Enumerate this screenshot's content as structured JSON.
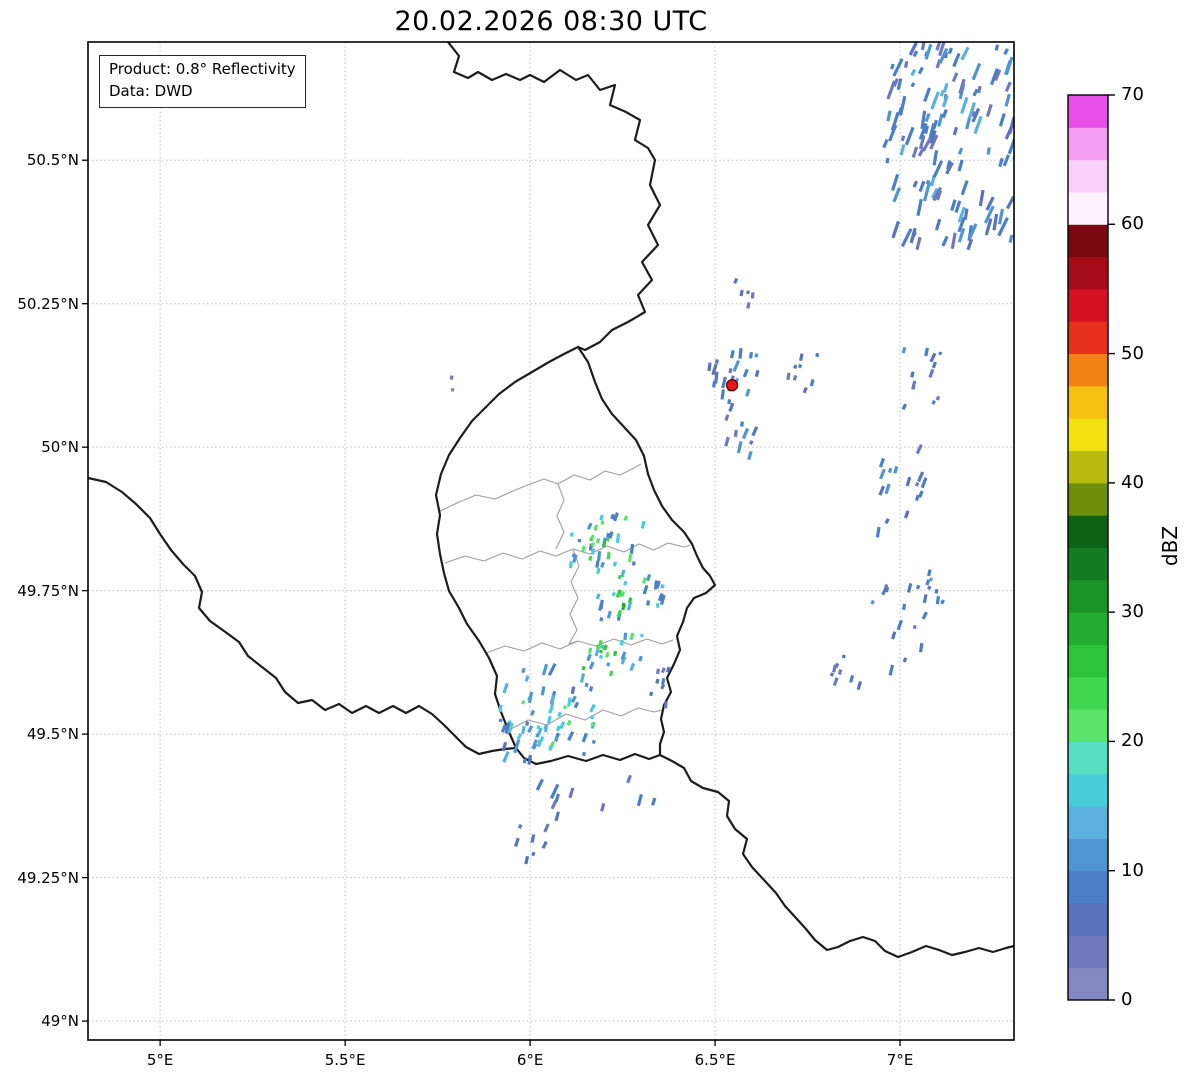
{
  "title": "20.02.2026 08:30 UTC",
  "info_box": {
    "line1": "Product: 0.8° Reflectivity",
    "line2": "Data: DWD"
  },
  "axes": {
    "lon_min": 4.805,
    "lon_max": 7.308,
    "lat_min": 48.967,
    "lat_max": 50.706,
    "x_ticks": [
      {
        "value": 5.0,
        "label": "5°E"
      },
      {
        "value": 5.5,
        "label": "5.5°E"
      },
      {
        "value": 6.0,
        "label": "6°E"
      },
      {
        "value": 6.5,
        "label": "6.5°E"
      },
      {
        "value": 7.0,
        "label": "7°E"
      }
    ],
    "y_ticks": [
      {
        "value": 50.5,
        "label": "50.5°N"
      },
      {
        "value": 50.25,
        "label": "50.25°N"
      },
      {
        "value": 50.0,
        "label": "50°N"
      },
      {
        "value": 49.75,
        "label": "49.75°N"
      },
      {
        "value": 49.5,
        "label": "49.5°N"
      },
      {
        "value": 49.25,
        "label": "49.25°N"
      },
      {
        "value": 49.0,
        "label": "49°N"
      }
    ]
  },
  "map": {
    "border_color": "#1c1c1c",
    "admin_color": "#9e9e9e",
    "grid_color": "#bdbdbd",
    "background": "#ffffff"
  },
  "marker": {
    "description": "radar site",
    "lon": 6.546,
    "lat": 50.108,
    "color": "#e31a1c",
    "edge_color": "#6b0000",
    "radius": 5.5
  },
  "colorbar": {
    "label": "dBZ",
    "min": 0,
    "max": 70,
    "tick_values": [
      0,
      10,
      20,
      30,
      40,
      50,
      60,
      70
    ],
    "segment_step": 2.5,
    "colors": [
      "#8487c1",
      "#6f78bc",
      "#5973bd",
      "#4a7ec6",
      "#4e95d1",
      "#5bb1de",
      "#49ccd9",
      "#55dfc0",
      "#5ae468",
      "#3fd74f",
      "#2cc43c",
      "#23ad31",
      "#1b9427",
      "#137c1e",
      "#0c6315",
      "#6f8e0b",
      "#b8bb0d",
      "#f0e10f",
      "#f5c113",
      "#f08312",
      "#e92f1e",
      "#d31120",
      "#a60c18",
      "#780911",
      "#fdf2fd",
      "#f9d0f9",
      "#f29df2",
      "#e84fe8"
    ]
  },
  "echo_clusters": [
    {
      "name": "echo-germany-northeast",
      "lon": 7.14,
      "lat": 50.53,
      "dlon": 0.36,
      "dlat": 0.36,
      "n": 130,
      "len": [
        4,
        20
      ],
      "angle": 18,
      "palette": [
        [
          "#6f78bc",
          2
        ],
        [
          "#5973bd",
          3
        ],
        [
          "#4a7ec6",
          4
        ],
        [
          "#4e95d1",
          2
        ],
        [
          "#5bb1de",
          1
        ]
      ]
    },
    {
      "name": "echo-speck-north",
      "lon": 6.58,
      "lat": 50.26,
      "dlon": 0.05,
      "dlat": 0.07,
      "n": 5,
      "len": [
        3,
        7
      ],
      "angle": 15,
      "palette": [
        [
          "#6f78bc",
          3
        ],
        [
          "#5973bd",
          4
        ],
        [
          "#4a7ec6",
          3
        ]
      ]
    },
    {
      "name": "echo-near-radar-site",
      "lon": 6.55,
      "lat": 50.07,
      "dlon": 0.14,
      "dlat": 0.2,
      "n": 30,
      "len": [
        3,
        12
      ],
      "angle": 15,
      "palette": [
        [
          "#6f78bc",
          2
        ],
        [
          "#5973bd",
          3
        ],
        [
          "#4a7ec6",
          4
        ],
        [
          "#4e95d1",
          2
        ]
      ]
    },
    {
      "name": "echo-east-of-radar",
      "lon": 6.74,
      "lat": 50.13,
      "dlon": 0.09,
      "dlat": 0.07,
      "n": 8,
      "len": [
        3,
        8
      ],
      "angle": 15,
      "palette": [
        [
          "#6f78bc",
          3
        ],
        [
          "#5973bd",
          4
        ],
        [
          "#4a7ec6",
          3
        ]
      ]
    },
    {
      "name": "echo-far-east-north",
      "lon": 7.07,
      "lat": 50.12,
      "dlon": 0.12,
      "dlat": 0.1,
      "n": 12,
      "len": [
        3,
        10
      ],
      "angle": 18,
      "palette": [
        [
          "#6f78bc",
          2
        ],
        [
          "#5973bd",
          3
        ],
        [
          "#4a7ec6",
          4
        ],
        [
          "#4e95d1",
          2
        ]
      ]
    },
    {
      "name": "echo-far-east-mid",
      "lon": 7.0,
      "lat": 49.92,
      "dlon": 0.14,
      "dlat": 0.16,
      "n": 16,
      "len": [
        3,
        11
      ],
      "angle": 18,
      "palette": [
        [
          "#6f78bc",
          2
        ],
        [
          "#5973bd",
          3
        ],
        [
          "#4a7ec6",
          4
        ],
        [
          "#4e95d1",
          2
        ]
      ]
    },
    {
      "name": "echo-far-east-south",
      "lon": 7.02,
      "lat": 49.7,
      "dlon": 0.2,
      "dlat": 0.18,
      "n": 22,
      "len": [
        3,
        11
      ],
      "angle": 18,
      "palette": [
        [
          "#6f78bc",
          2
        ],
        [
          "#5973bd",
          3
        ],
        [
          "#4a7ec6",
          4
        ],
        [
          "#4e95d1",
          2
        ]
      ]
    },
    {
      "name": "echo-southeast-speck",
      "lon": 6.85,
      "lat": 49.61,
      "dlon": 0.09,
      "dlat": 0.07,
      "n": 8,
      "len": [
        3,
        9
      ],
      "angle": 18,
      "palette": [
        [
          "#6f78bc",
          3
        ],
        [
          "#5973bd",
          4
        ],
        [
          "#4a7ec6",
          3
        ]
      ]
    },
    {
      "name": "echo-lux-north",
      "lon": 6.21,
      "lat": 49.845,
      "dlon": 0.2,
      "dlat": 0.1,
      "n": 28,
      "len": [
        3,
        10
      ],
      "angle": 15,
      "palette": [
        [
          "#4a7ec6",
          3
        ],
        [
          "#4e95d1",
          2
        ],
        [
          "#5bb1de",
          2
        ],
        [
          "#49ccd9",
          2
        ],
        [
          "#5ae468",
          1
        ],
        [
          "#3fd74f",
          1
        ]
      ]
    },
    {
      "name": "echo-lux-north-core",
      "lon": 6.19,
      "lat": 49.85,
      "dlon": 0.05,
      "dlat": 0.04,
      "n": 8,
      "len": [
        3,
        6
      ],
      "angle": 15,
      "palette": [
        [
          "#3fd74f",
          3
        ],
        [
          "#5ae468",
          2
        ],
        [
          "#2cc43c",
          2
        ],
        [
          "#23ad31",
          1
        ]
      ]
    },
    {
      "name": "echo-lux-mid",
      "lon": 6.27,
      "lat": 49.74,
      "dlon": 0.19,
      "dlat": 0.1,
      "n": 24,
      "len": [
        3,
        10
      ],
      "angle": 15,
      "palette": [
        [
          "#4a7ec6",
          3
        ],
        [
          "#4e95d1",
          2
        ],
        [
          "#5bb1de",
          2
        ],
        [
          "#49ccd9",
          2
        ],
        [
          "#5ae468",
          1
        ],
        [
          "#3fd74f",
          1
        ]
      ]
    },
    {
      "name": "echo-lux-mid-core",
      "lon": 6.25,
      "lat": 49.73,
      "dlon": 0.05,
      "dlat": 0.04,
      "n": 7,
      "len": [
        3,
        6
      ],
      "angle": 15,
      "palette": [
        [
          "#3fd74f",
          3
        ],
        [
          "#5ae468",
          2
        ],
        [
          "#2cc43c",
          2
        ],
        [
          "#23ad31",
          1
        ]
      ]
    },
    {
      "name": "echo-lux-south",
      "lon": 6.22,
      "lat": 49.64,
      "dlon": 0.17,
      "dlat": 0.07,
      "n": 18,
      "len": [
        3,
        9
      ],
      "angle": 15,
      "palette": [
        [
          "#4e95d1",
          2
        ],
        [
          "#49ccd9",
          2
        ],
        [
          "#5ae468",
          2
        ],
        [
          "#3fd74f",
          2
        ],
        [
          "#2cc43c",
          1
        ],
        [
          "#5bb1de",
          1
        ]
      ]
    },
    {
      "name": "echo-lux-south-core",
      "lon": 6.2,
      "lat": 49.645,
      "dlon": 0.04,
      "dlat": 0.03,
      "n": 6,
      "len": [
        3,
        6
      ],
      "angle": 15,
      "palette": [
        [
          "#3fd74f",
          3
        ],
        [
          "#5ae468",
          2
        ],
        [
          "#2cc43c",
          2
        ]
      ]
    },
    {
      "name": "echo-lux-southwest",
      "lon": 6.05,
      "lat": 49.53,
      "dlon": 0.26,
      "dlat": 0.17,
      "n": 52,
      "len": [
        3,
        14
      ],
      "angle": 18,
      "palette": [
        [
          "#4a7ec6",
          3
        ],
        [
          "#4e95d1",
          2
        ],
        [
          "#5bb1de",
          2
        ],
        [
          "#49ccd9",
          2
        ],
        [
          "#5ae468",
          1
        ],
        [
          "#5973bd",
          2
        ]
      ]
    },
    {
      "name": "echo-lux-southwest-cyan",
      "lon": 6.03,
      "lat": 49.51,
      "dlon": 0.1,
      "dlat": 0.08,
      "n": 12,
      "len": [
        3,
        8
      ],
      "angle": 18,
      "palette": [
        [
          "#49ccd9",
          3
        ],
        [
          "#5bb1de",
          2
        ],
        [
          "#4e95d1",
          2
        ],
        [
          "#55dfc0",
          1
        ]
      ]
    },
    {
      "name": "echo-lux-east-speck",
      "lon": 6.35,
      "lat": 49.58,
      "dlon": 0.07,
      "dlat": 0.08,
      "n": 8,
      "len": [
        3,
        8
      ],
      "angle": 15,
      "palette": [
        [
          "#6f78bc",
          3
        ],
        [
          "#5973bd",
          4
        ],
        [
          "#4a7ec6",
          3
        ]
      ]
    },
    {
      "name": "echo-south-streaks",
      "lon": 6.17,
      "lat": 49.39,
      "dlon": 0.34,
      "dlat": 0.07,
      "n": 10,
      "len": [
        7,
        18
      ],
      "angle": 25,
      "palette": [
        [
          "#6f78bc",
          3
        ],
        [
          "#5973bd",
          4
        ],
        [
          "#4a7ec6",
          3
        ]
      ]
    },
    {
      "name": "echo-south-speck",
      "lon": 6.0,
      "lat": 49.31,
      "dlon": 0.1,
      "dlat": 0.08,
      "n": 7,
      "len": [
        3,
        9
      ],
      "angle": 20,
      "palette": [
        [
          "#6f78bc",
          3
        ],
        [
          "#5973bd",
          4
        ],
        [
          "#4a7ec6",
          3
        ]
      ]
    },
    {
      "name": "echo-tiny-west",
      "lon": 5.79,
      "lat": 50.11,
      "dlon": 0.01,
      "dlat": 0.03,
      "n": 2,
      "len": [
        3,
        5
      ],
      "angle": 10,
      "palette": [
        [
          "#8487c1",
          2
        ],
        [
          "#6f78bc",
          3
        ]
      ]
    }
  ]
}
